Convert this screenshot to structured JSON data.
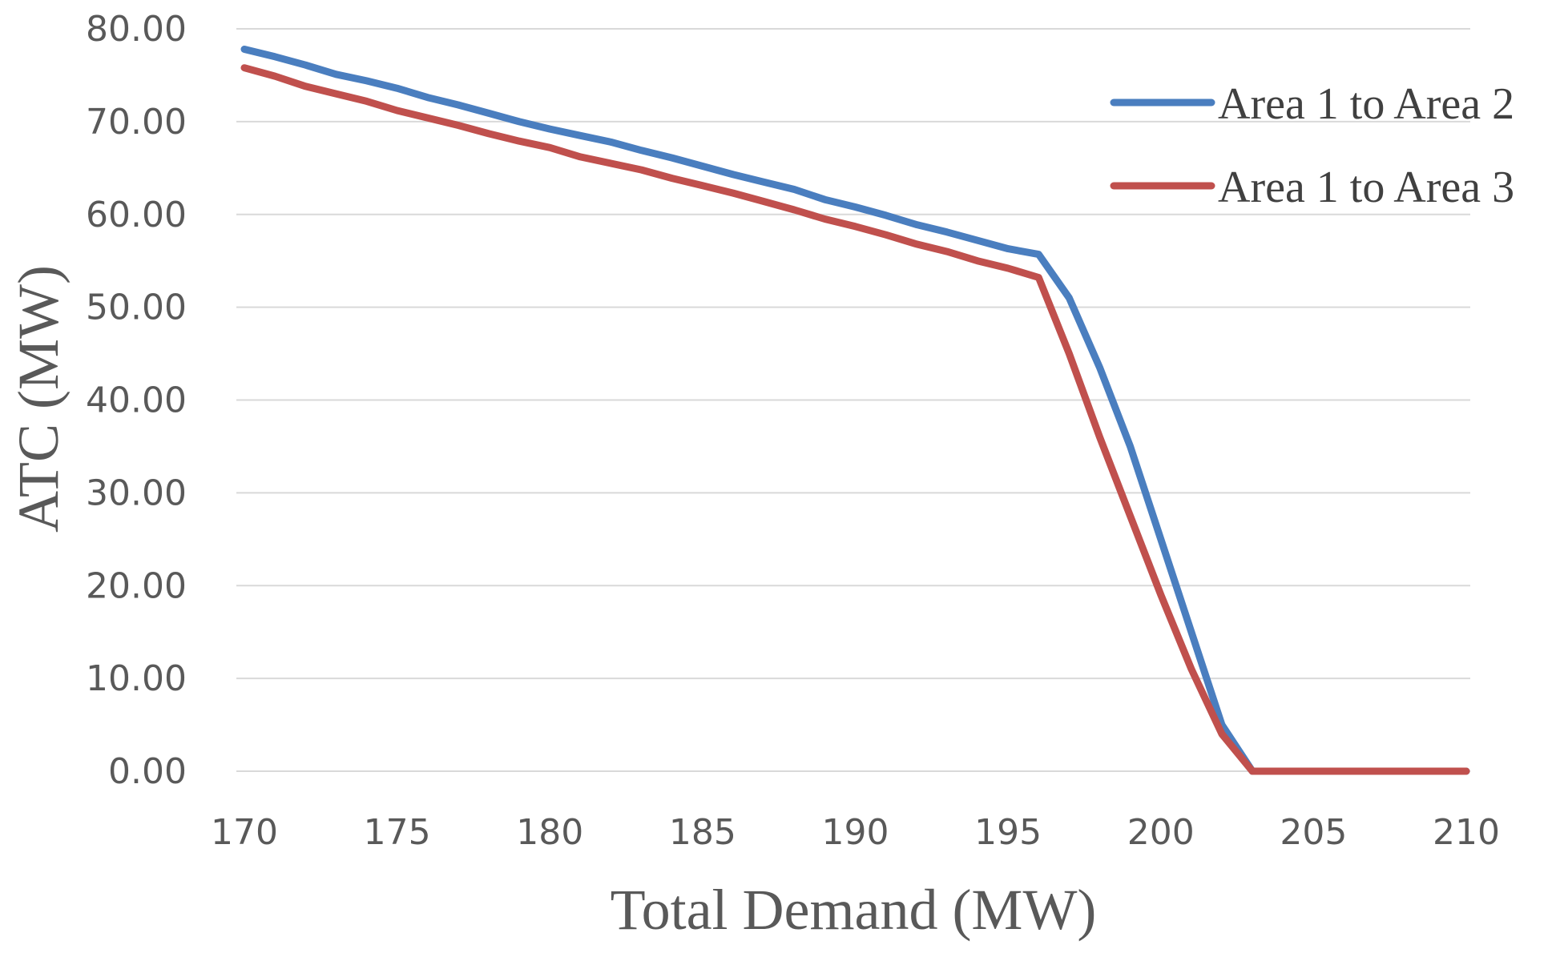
{
  "chart_data": {
    "type": "line",
    "title": "",
    "xlabel": "Total Demand (MW)",
    "ylabel": "ATC (MW)",
    "xlim": [
      170,
      210
    ],
    "ylim": [
      0,
      80
    ],
    "xticks": [
      "170",
      "175",
      "180",
      "185",
      "190",
      "195",
      "200",
      "205",
      "210"
    ],
    "yticks": [
      "0.00",
      "10.00",
      "20.00",
      "30.00",
      "40.00",
      "50.00",
      "60.00",
      "70.00",
      "80.00"
    ],
    "grid": "horizontal",
    "legend_position": "top-right",
    "series": [
      {
        "name": "Area 1 to Area 2",
        "color": "#4a7ebf",
        "x": [
          170,
          171,
          172,
          173,
          174,
          175,
          176,
          177,
          178,
          179,
          180,
          181,
          182,
          183,
          184,
          185,
          186,
          187,
          188,
          189,
          190,
          191,
          192,
          193,
          194,
          195,
          196,
          197,
          198,
          199,
          200,
          201,
          202,
          203,
          204,
          205,
          206,
          207,
          208,
          209,
          210
        ],
        "values": [
          77.8,
          77.0,
          76.1,
          75.1,
          74.4,
          73.6,
          72.6,
          71.8,
          70.9,
          70.0,
          69.2,
          68.5,
          67.8,
          66.9,
          66.1,
          65.2,
          64.3,
          63.5,
          62.7,
          61.6,
          60.8,
          59.9,
          58.9,
          58.1,
          57.2,
          56.3,
          55.7,
          51.0,
          43.5,
          35.0,
          25.0,
          15.0,
          5.0,
          0.0,
          0.0,
          0.0,
          0.0,
          0.0,
          0.0,
          0.0,
          0.0
        ]
      },
      {
        "name": "Area 1 to Area 3",
        "color": "#c0504d",
        "x": [
          170,
          171,
          172,
          173,
          174,
          175,
          176,
          177,
          178,
          179,
          180,
          181,
          182,
          183,
          184,
          185,
          186,
          187,
          188,
          189,
          190,
          191,
          192,
          193,
          194,
          195,
          196,
          197,
          198,
          199,
          200,
          201,
          202,
          203,
          204,
          205,
          206,
          207,
          208,
          209,
          210
        ],
        "values": [
          75.8,
          74.9,
          73.8,
          73.0,
          72.2,
          71.2,
          70.4,
          69.6,
          68.7,
          67.9,
          67.2,
          66.2,
          65.5,
          64.8,
          63.9,
          63.1,
          62.3,
          61.4,
          60.5,
          59.5,
          58.7,
          57.8,
          56.8,
          56.0,
          55.0,
          54.2,
          53.2,
          45.0,
          36.0,
          27.5,
          19.0,
          11.0,
          4.0,
          0.0,
          0.0,
          0.0,
          0.0,
          0.0,
          0.0,
          0.0,
          0.0
        ]
      }
    ]
  }
}
